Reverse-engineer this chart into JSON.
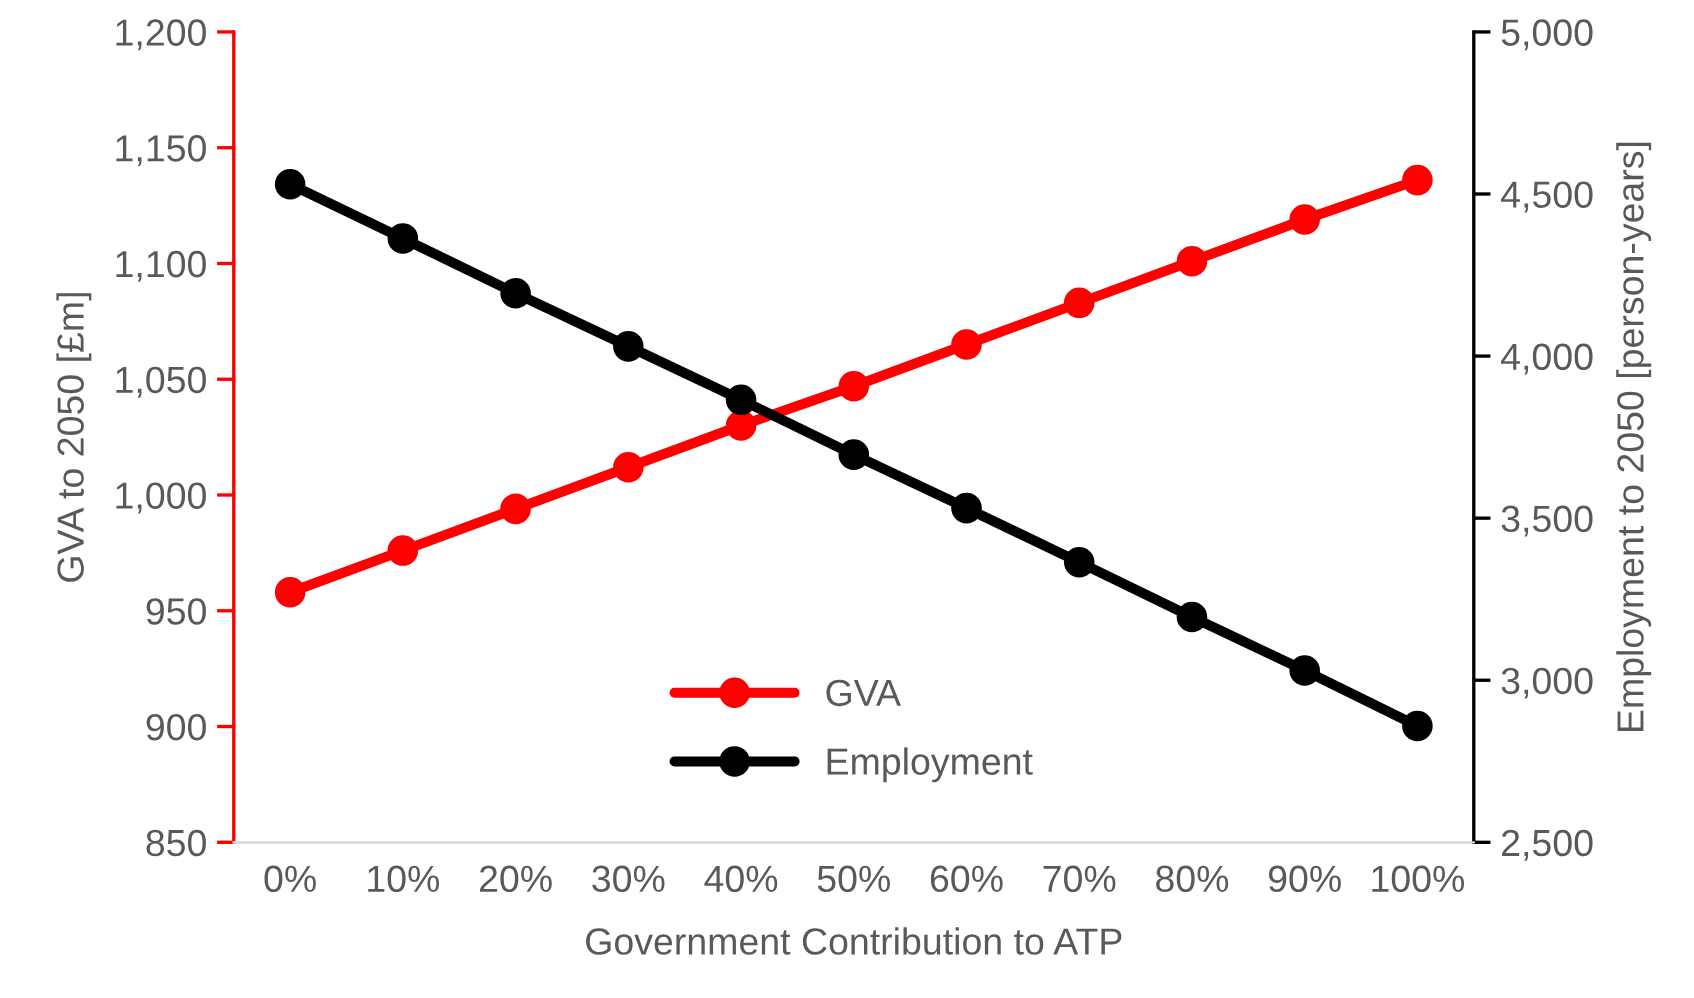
{
  "chart_data": {
    "type": "line",
    "xlabel": "Government Contribution to ATP",
    "ylabel": "GVA to 2050 [£m]",
    "y2label": "Employment to 2050 [person-years]",
    "categories": [
      "0%",
      "10%",
      "20%",
      "30%",
      "40%",
      "50%",
      "60%",
      "70%",
      "80%",
      "90%",
      "100%"
    ],
    "series": [
      {
        "name": "GVA",
        "color": "#ff0000",
        "values": [
          958,
          976,
          994,
          1012,
          1030,
          1047,
          1065,
          1083,
          1101,
          1119,
          1136
        ]
      },
      {
        "name": "Employment",
        "color": "#000000",
        "axis": "y2",
        "values": [
          4530,
          4363,
          4194,
          4030,
          3865,
          3696,
          3531,
          3364,
          3195,
          3030,
          2859
        ]
      }
    ],
    "ylim": [
      850,
      1200
    ],
    "yticks": [
      850,
      900,
      950,
      {
        "value": 1000,
        "label": "1,000"
      },
      {
        "value": 1050,
        "label": "1,050"
      },
      {
        "value": 1100,
        "label": "1,100"
      },
      {
        "value": 1150,
        "label": "1,150"
      },
      {
        "value": 1200,
        "label": "1,200"
      }
    ],
    "y2lim": [
      2500,
      5000
    ],
    "y2ticks": [
      {
        "value": 2500,
        "label": "2,500"
      },
      {
        "value": 3000,
        "label": "3,000"
      },
      {
        "value": 3500,
        "label": "3,500"
      },
      {
        "value": 4000,
        "label": "4,000"
      },
      {
        "value": 4500,
        "label": "4,500"
      },
      {
        "value": 5000,
        "label": "5,000"
      }
    ],
    "marker": "circle",
    "line_style": "solid",
    "legend": "bottom",
    "grid": false
  }
}
